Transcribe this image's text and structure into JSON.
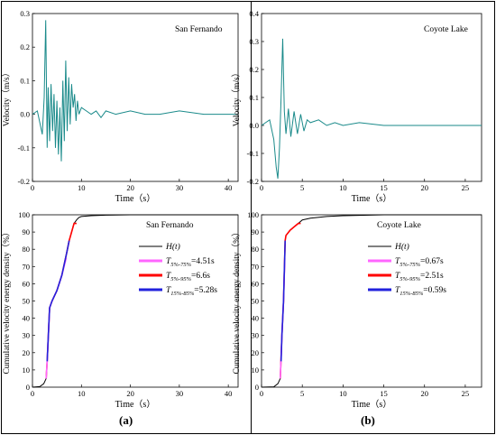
{
  "chart_data": [
    {
      "type": "line",
      "annotation": "San Fernando",
      "xlabel": "Time（s）",
      "ylabel": "Velocity（m/s）",
      "xlim": [
        0,
        42
      ],
      "ylim": [
        -0.2,
        0.3
      ],
      "xticks": [
        0,
        10,
        20,
        30,
        40
      ],
      "yticks": [
        -0.2,
        -0.1,
        0.0,
        0.1,
        0.2,
        0.3
      ],
      "ytick_labels": [
        "-0.2",
        "-0.1",
        "0.0",
        "0.1",
        "0.2",
        "0.3"
      ],
      "color": "#1a8a8a",
      "series": [
        {
          "x": [
            0,
            1,
            2,
            2.4,
            2.7,
            3.0,
            3.2,
            3.5,
            3.8,
            4.1,
            4.4,
            4.7,
            5.0,
            5.3,
            5.6,
            5.9,
            6.2,
            6.5,
            6.8,
            7.1,
            7.4,
            7.7,
            8.0,
            8.3,
            8.6,
            8.9,
            9.2,
            9.5,
            10,
            11,
            12,
            13,
            14,
            15,
            17,
            20,
            23,
            26,
            30,
            35,
            40,
            42
          ],
          "y": [
            0.0,
            0.01,
            -0.06,
            0.05,
            0.28,
            -0.1,
            0.08,
            -0.08,
            0.09,
            -0.05,
            0.06,
            -0.1,
            0.04,
            -0.12,
            0.02,
            -0.14,
            0.1,
            -0.08,
            0.16,
            -0.05,
            0.11,
            -0.03,
            0.09,
            0.02,
            0.06,
            -0.02,
            0.04,
            0.0,
            0.02,
            0.01,
            0.0,
            0.01,
            -0.01,
            0.01,
            0.0,
            0.01,
            0.0,
            0.0,
            0.01,
            0.0,
            0.0,
            0.0
          ]
        }
      ]
    },
    {
      "type": "line",
      "annotation": "Coyote Lake",
      "xlabel": "Time（s）",
      "ylabel": "Velocity（m/s）",
      "xlim": [
        0,
        27
      ],
      "ylim": [
        -0.2,
        0.4
      ],
      "xticks": [
        0,
        5,
        10,
        15,
        20,
        25
      ],
      "yticks": [
        -0.2,
        -0.1,
        0.0,
        0.1,
        0.2,
        0.3,
        0.4
      ],
      "ytick_labels": [
        "-0.2",
        "-0.1",
        "0.0",
        "0.1",
        "0.2",
        "0.3",
        "0.4"
      ],
      "color": "#1a8a8a",
      "series": [
        {
          "x": [
            0,
            0.5,
            1.0,
            1.5,
            1.8,
            2.0,
            2.2,
            2.4,
            2.6,
            2.8,
            3.0,
            3.3,
            3.6,
            4.0,
            4.4,
            4.8,
            5.2,
            5.6,
            6.0,
            7,
            8,
            9,
            10,
            12,
            15,
            20,
            25,
            27
          ],
          "y": [
            0.0,
            0.01,
            0.02,
            -0.05,
            -0.15,
            -0.19,
            -0.08,
            0.1,
            0.31,
            0.05,
            -0.03,
            0.06,
            -0.04,
            0.05,
            -0.03,
            0.04,
            -0.02,
            0.02,
            0.01,
            0.02,
            0.0,
            0.01,
            0.0,
            0.01,
            0.0,
            0.0,
            0.0,
            0.0
          ]
        }
      ]
    },
    {
      "type": "line",
      "annotation": "San Fernando",
      "xlabel": "Time（s）",
      "ylabel": "Cumulative velocity energy density（%）",
      "xlim": [
        0,
        42
      ],
      "ylim": [
        0,
        100
      ],
      "xticks": [
        0,
        10,
        20,
        30,
        40
      ],
      "yticks": [
        0,
        10,
        20,
        30,
        40,
        50,
        60,
        70,
        80,
        90,
        100
      ],
      "legend": {
        "H(t)": {
          "text": "H(t)",
          "color": "#000000"
        },
        "t575": {
          "main": "T",
          "sub": "5%-75%",
          "value": "=4.51s",
          "color": "#ff66ff"
        },
        "t595": {
          "main": "T",
          "sub": "5%-95%",
          "value": "=6.6s",
          "color": "#ff0000"
        },
        "t1585": {
          "main": "T",
          "sub": "15%-85%",
          "value": "=5.28s",
          "color": "#2222dd"
        }
      },
      "series": [
        {
          "name": "H(t)",
          "color": "#000000",
          "x": [
            0,
            1.5,
            2.3,
            2.8,
            3.0,
            3.5,
            4.0,
            5.0,
            6.0,
            7.0,
            7.5,
            8.0,
            8.5,
            9.0,
            9.5,
            10,
            12,
            15,
            20,
            30,
            42
          ],
          "y": [
            0,
            0.3,
            2,
            5,
            15,
            46,
            50,
            56,
            65,
            78,
            85,
            90,
            95,
            97,
            98.5,
            99,
            99.5,
            99.8,
            100,
            100,
            100
          ]
        },
        {
          "name": "T5-95",
          "color": "#ff0000",
          "x": [
            2.8,
            3.0,
            3.5,
            4.0,
            5.0,
            6.0,
            7.0,
            7.5,
            8.0,
            8.5,
            9.0
          ],
          "y": [
            5,
            15,
            46,
            50,
            56,
            65,
            78,
            85,
            90,
            95,
            95
          ]
        },
        {
          "name": "T5-75",
          "color": "#ff66ff",
          "x": [
            2.8,
            3.0,
            3.5,
            4.0,
            5.0,
            6.0,
            6.9
          ],
          "y": [
            5,
            15,
            46,
            50,
            56,
            65,
            75
          ]
        },
        {
          "name": "T15-85",
          "color": "#2222dd",
          "x": [
            3.0,
            3.5,
            4.0,
            5.0,
            6.0,
            7.0,
            7.5
          ],
          "y": [
            15,
            46,
            50,
            56,
            65,
            78,
            85
          ]
        }
      ]
    },
    {
      "type": "line",
      "annotation": "Coyote Lake",
      "xlabel": "Time（s）",
      "ylabel": "Cumulative velocity energy density（%）",
      "xlim": [
        0,
        27
      ],
      "ylim": [
        0,
        100
      ],
      "xticks": [
        0,
        5,
        10,
        15,
        20,
        25
      ],
      "yticks": [
        0,
        10,
        20,
        30,
        40,
        50,
        60,
        70,
        80,
        90,
        100
      ],
      "legend": {
        "H(t)": {
          "text": "H(t)",
          "color": "#000000"
        },
        "t575": {
          "main": "T",
          "sub": "5%-75%",
          "value": "=0.67s",
          "color": "#ff66ff"
        },
        "t595": {
          "main": "T",
          "sub": "5%-95%",
          "value": "=2.51s",
          "color": "#ff0000"
        },
        "t1585": {
          "main": "T",
          "sub": "15%-85%",
          "value": "=0.59s",
          "color": "#2222dd"
        }
      },
      "series": [
        {
          "name": "H(t)",
          "color": "#000000",
          "x": [
            0,
            1.5,
            2.0,
            2.3,
            2.5,
            2.7,
            2.9,
            3.0,
            3.5,
            4.0,
            4.5,
            5.0,
            6.0,
            8,
            10,
            15,
            20,
            27
          ],
          "y": [
            0,
            0.2,
            2,
            5,
            30,
            50,
            85,
            88,
            91,
            93,
            95,
            97,
            98,
            99,
            99.5,
            100,
            100,
            100
          ]
        },
        {
          "name": "T5-95",
          "color": "#ff0000",
          "x": [
            2.3,
            2.5,
            2.7,
            2.9,
            3.0,
            3.5,
            4.0,
            4.5,
            4.8
          ],
          "y": [
            5,
            30,
            50,
            85,
            88,
            91,
            93,
            95,
            95
          ]
        },
        {
          "name": "T5-75",
          "color": "#ff66ff",
          "x": [
            2.3,
            2.5,
            2.7,
            2.85
          ],
          "y": [
            5,
            30,
            50,
            75
          ]
        },
        {
          "name": "T15-85",
          "color": "#2222dd",
          "x": [
            2.4,
            2.5,
            2.7,
            2.9
          ],
          "y": [
            15,
            30,
            50,
            85
          ]
        }
      ]
    }
  ],
  "panel_labels": {
    "a": "(a)",
    "b": "(b)"
  }
}
